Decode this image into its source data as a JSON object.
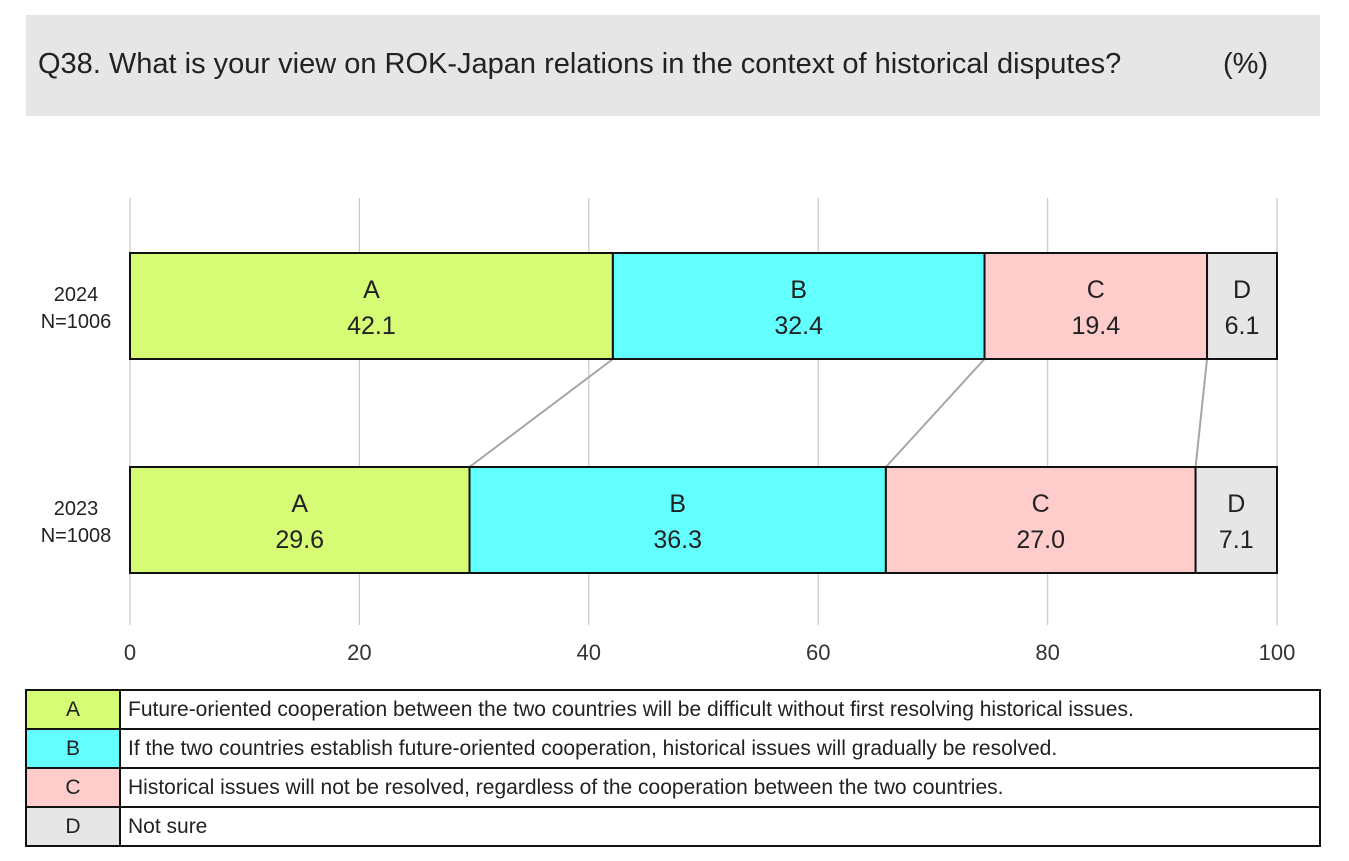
{
  "header": {
    "title": "Q38. What is your view on ROK-Japan relations in the context of historical disputes?",
    "unit": "(%)"
  },
  "colors": {
    "A": "#d6fb74",
    "B": "#63ffff",
    "C": "#ffcccc",
    "D": "#e6e6e6",
    "grid": "#cccccc",
    "connector": "#a6a6a6",
    "title_bg": "#e6e6e6"
  },
  "chart_data": {
    "type": "bar",
    "orientation": "horizontal",
    "stacked": true,
    "title": "Q38. What is your view on ROK-Japan relations in the context of historical disputes?",
    "unit": "(%)",
    "xlim": [
      0,
      100
    ],
    "xticks": [
      0,
      20,
      40,
      60,
      80,
      100
    ],
    "grid": "vertical",
    "connector_lines": true,
    "categories": [
      {
        "year": "2024",
        "n": "N=1006"
      },
      {
        "year": "2023",
        "n": "N=1008"
      }
    ],
    "series": [
      {
        "name": "A",
        "values": [
          42.1,
          29.6
        ]
      },
      {
        "name": "B",
        "values": [
          32.4,
          36.3
        ]
      },
      {
        "name": "C",
        "values": [
          19.4,
          27.0
        ]
      },
      {
        "name": "D",
        "values": [
          6.1,
          7.1
        ]
      }
    ]
  },
  "legend": [
    {
      "key": "A",
      "text": "Future-oriented cooperation between the two countries will be difficult without first resolving historical issues."
    },
    {
      "key": "B",
      "text": "If the two countries establish future-oriented cooperation, historical issues will gradually be resolved."
    },
    {
      "key": "C",
      "text": "Historical issues will not be resolved, regardless of the cooperation between the two countries."
    },
    {
      "key": "D",
      "text": "Not sure"
    }
  ]
}
